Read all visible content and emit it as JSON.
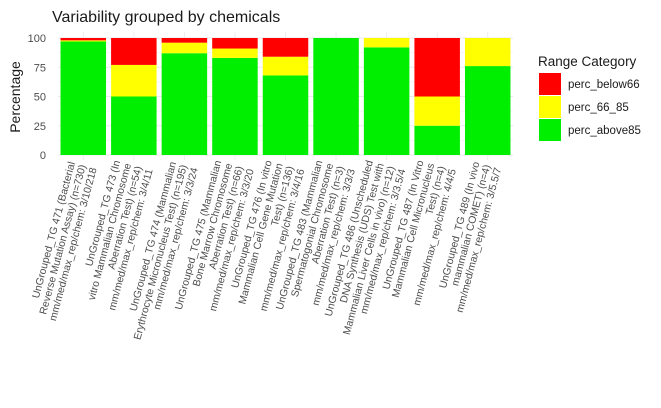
{
  "chart_data": {
    "type": "bar",
    "stacked": true,
    "title": "Variability grouped by chemicals",
    "xlabel": "",
    "ylabel": "Percentage",
    "ylim": [
      0,
      100
    ],
    "yticks": [
      "0",
      "25",
      "50",
      "75",
      "100"
    ],
    "grid": true,
    "legend_position": "right",
    "legend_title": "Range Category",
    "categories": [
      [
        "UnGrouped_TG 471 (Bacterial",
        "Reverse Mutation Assay) (n=730)",
        "mm/med/max_rep/chem: 3/10/218"
      ],
      [
        "UnGrouped_TG 473 (In",
        "vitro Mammalian Chromosome",
        "Aberration Test) (n=54)",
        "mm/med/max_rep/chem: 3/4/11"
      ],
      [
        "UnGrouped_TG 474 (Mammalian",
        "Erythrocyte Micronucleus Test) (n=195)",
        "mm/med/max_rep/chem: 3/3/24"
      ],
      [
        "UnGrouped_TG 475 (Mammalian",
        "Bone Marrow Chromosome",
        "Aberration Test) (n=66)",
        "mm/med/max_rep/chem: 3/3/20"
      ],
      [
        "UnGrouped_TG 476 (In vitro",
        "Mammalian Cell Gene Mutation",
        "Test) (n=136)",
        "mm/med/max_rep/chem: 3/4/16"
      ],
      [
        "UnGrouped_TG 483 (Mammalian",
        "Spermatogonial Chromosome",
        "Aberration Test) (n=3)",
        "mm/med/max_rep/chem: 3/3/3"
      ],
      [
        "UnGrouped_TG 486 (Unscheduled",
        "DNA Synthesis (UDS) Test with",
        "Mammalian Liver Cells in vivo) (n=12)",
        "mm/med/max_rep/chem: 3/3.5/4"
      ],
      [
        "UnGrouped_TG 487 (In Vitro",
        "Mammalian Cell Micronucleus",
        "Test) (n=4)",
        "mm/med/max_rep/chem: 4/4/5"
      ],
      [
        "UnGrouped_TG 489 (In vivo",
        "mammalian COMET) (n=4)",
        "mm/med/max_rep/chem: 3/5.5/7"
      ]
    ],
    "series": [
      {
        "name": "perc_above85",
        "color": "#00ee00",
        "values": [
          97,
          50,
          87,
          83,
          68,
          100,
          92,
          25,
          76
        ]
      },
      {
        "name": "perc_66_85",
        "color": "#ffff00",
        "values": [
          1,
          27,
          9,
          8,
          16,
          0,
          8,
          25,
          24
        ]
      },
      {
        "name": "perc_below66",
        "color": "#ff0000",
        "values": [
          2,
          23,
          4,
          9,
          16,
          0,
          0,
          50,
          0
        ]
      }
    ],
    "legend_order": [
      "perc_below66",
      "perc_66_85",
      "perc_above85"
    ]
  }
}
